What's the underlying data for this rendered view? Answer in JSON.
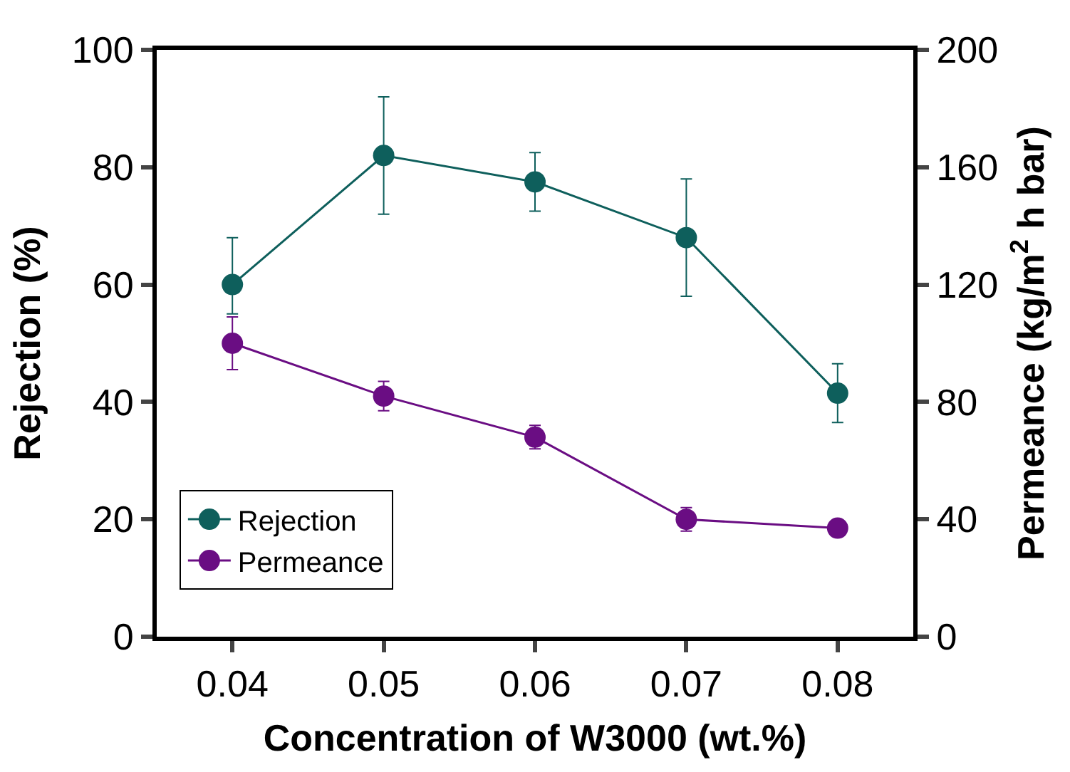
{
  "chart_data": {
    "type": "line",
    "xlabel": "Concentration of W3000 (wt.%)",
    "ylabel": "Rejection (%)",
    "y2label": "Permeance (kg/m$^{2}$ h bar)",
    "x": [
      0.04,
      0.05,
      0.06,
      0.07,
      0.08
    ],
    "series": [
      {
        "name": "Rejection",
        "color": "#0e5f5c",
        "values": [
          60,
          82,
          77.5,
          68,
          41.5
        ],
        "errors": [
          [
            55,
            68
          ],
          10,
          5,
          10,
          5
        ]
      },
      {
        "name": "Permeance",
        "color": "#6a0d83",
        "axis": "y2",
        "values": [
          100,
          82,
          68,
          40,
          37
        ],
        "errors": [
          9,
          5,
          4,
          4,
          null
        ]
      }
    ],
    "xlim": [
      0.035,
      0.085
    ],
    "xticks": [
      0.04,
      0.05,
      0.06,
      0.07,
      0.08
    ],
    "ylim": [
      0,
      100
    ],
    "yticks": [
      0,
      20,
      40,
      60,
      80,
      100
    ],
    "y2lim": [
      0,
      200
    ],
    "y2ticks": [
      0,
      40,
      80,
      120,
      160,
      200
    ],
    "marker": "circle",
    "line_style": "solid",
    "legend": "bottom left"
  }
}
